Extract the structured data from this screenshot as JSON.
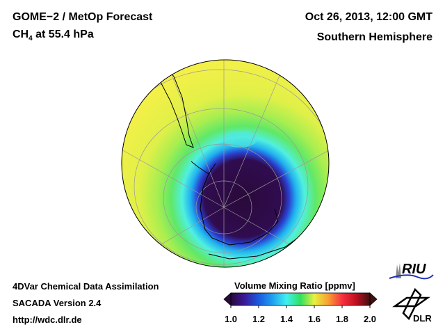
{
  "header": {
    "title_line1": "GOME−2 / MetOp Forecast",
    "species": "CH",
    "species_sub": "4",
    "level": " at 55.4 hPa",
    "date": "Oct 26, 2013, 12:00 GMT",
    "region": "Southern Hemisphere"
  },
  "footer": {
    "line1": "4DVar Chemical Data Assimilation",
    "line2": "SACADA Version 2.4",
    "line3": "http://wdc.dlr.de"
  },
  "colorbar": {
    "title": "Volume Mixing Ratio [ppmv]",
    "ticks": [
      "1.0",
      "1.2",
      "1.4",
      "1.6",
      "1.8",
      "2.0"
    ],
    "range": [
      1.0,
      2.0
    ],
    "colors": [
      "#2a0a3a",
      "#3a1a9a",
      "#1a5ae0",
      "#20a0f0",
      "#40f0f0",
      "#30e060",
      "#a0f030",
      "#f8f040",
      "#f8a030",
      "#f83040",
      "#c01020",
      "#401010"
    ]
  },
  "logos": {
    "riu": "RIU",
    "dlr": "DLR"
  }
}
